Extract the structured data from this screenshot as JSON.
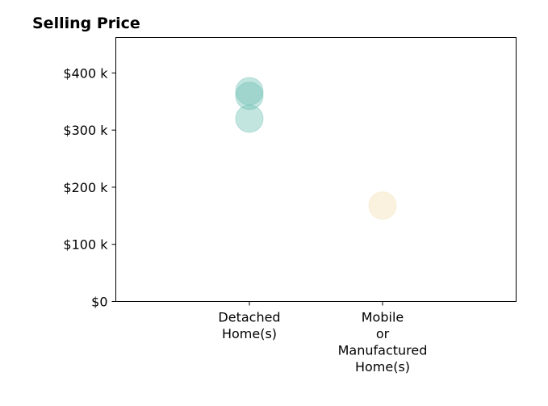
{
  "chart_data": {
    "type": "scatter",
    "title": "Selling Price",
    "xlabel": "",
    "ylabel": "",
    "categories": [
      [
        "Detached",
        "Home(s)"
      ],
      [
        "Mobile",
        "or",
        "Manufactured",
        "Home(s)"
      ]
    ],
    "yticks": [
      {
        "value": 0,
        "label": "$0"
      },
      {
        "value": 100000,
        "label": "$100 k"
      },
      {
        "value": 200000,
        "label": "$200 k"
      },
      {
        "value": 300000,
        "label": "$300 k"
      },
      {
        "value": 400000,
        "label": "$400 k"
      }
    ],
    "ylim": [
      0,
      462000
    ],
    "grid": false,
    "points": [
      {
        "category": 0,
        "y": 368000,
        "color": "#69bfb2"
      },
      {
        "category": 0,
        "y": 360000,
        "color": "#69bfb2"
      },
      {
        "category": 0,
        "y": 320000,
        "color": "#69bfb2"
      },
      {
        "category": 1,
        "y": 168000,
        "color": "#f3deaf"
      }
    ],
    "marker_opacity": 0.4
  }
}
